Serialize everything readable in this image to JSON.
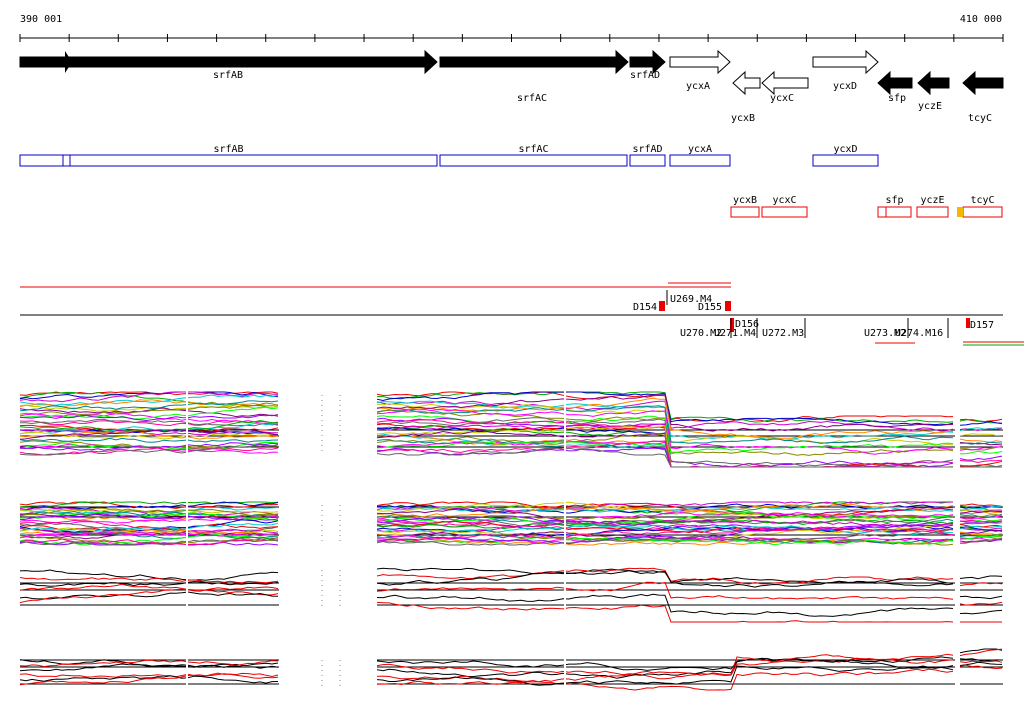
{
  "axis": {
    "start": "390 001",
    "end": "410 000"
  },
  "genes": [
    {
      "label": "srfAB"
    },
    {
      "label": "srfAC"
    },
    {
      "label": "srfAD"
    },
    {
      "label": "ycxA"
    },
    {
      "label": "ycxB"
    },
    {
      "label": "ycxC"
    },
    {
      "label": "ycxD"
    },
    {
      "label": "sfp"
    },
    {
      "label": "yczE"
    },
    {
      "label": "tcyC"
    }
  ],
  "cds_forward": [
    {
      "label": "srfAB"
    },
    {
      "label": "srfAC"
    },
    {
      "label": "srfAD"
    },
    {
      "label": "ycxA"
    },
    {
      "label": "ycxD"
    }
  ],
  "cds_reverse": [
    {
      "label": "ycxB"
    },
    {
      "label": "ycxC"
    },
    {
      "label": "sfp"
    },
    {
      "label": "yczE"
    },
    {
      "label": "tcyC"
    }
  ],
  "features": [
    {
      "label": "U269.M4"
    },
    {
      "label": "D154"
    },
    {
      "label": "D155"
    },
    {
      "label": "D156"
    },
    {
      "label": "U270.M2"
    },
    {
      "label": "U271.M4"
    },
    {
      "label": "U272.M3"
    },
    {
      "label": "U273.M2"
    },
    {
      "label": "U274.M16"
    },
    {
      "label": "D157"
    }
  ]
}
